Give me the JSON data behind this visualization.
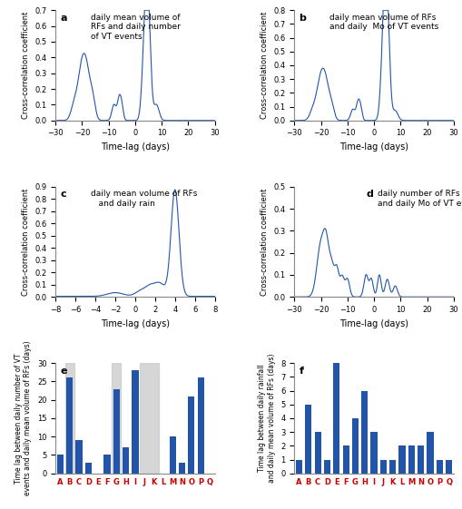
{
  "panel_a": {
    "title": "daily mean volume of\nRFs and daily number\nof VT events",
    "label": "a",
    "xlim": [
      -30,
      30
    ],
    "ylim": [
      0,
      0.7
    ],
    "yticks": [
      0.0,
      0.1,
      0.2,
      0.3,
      0.4,
      0.5,
      0.6,
      0.7
    ],
    "xticks": [
      -30,
      -20,
      -10,
      0,
      10,
      20,
      30
    ]
  },
  "panel_b": {
    "title": "daily mean volume of RFs\nand daily  Mo of VT events",
    "label": "b",
    "xlim": [
      -30,
      30
    ],
    "ylim": [
      0,
      0.8
    ],
    "yticks": [
      0.0,
      0.1,
      0.2,
      0.3,
      0.4,
      0.5,
      0.6,
      0.7,
      0.8
    ],
    "xticks": [
      -30,
      -20,
      -10,
      0,
      10,
      20,
      30
    ]
  },
  "panel_c": {
    "title": "daily mean volume of RFs\n   and daily rain",
    "label": "c",
    "xlim": [
      -8,
      8
    ],
    "ylim": [
      0,
      0.9
    ],
    "yticks": [
      0.0,
      0.1,
      0.2,
      0.3,
      0.4,
      0.5,
      0.6,
      0.7,
      0.8,
      0.9
    ],
    "xticks": [
      -8,
      -6,
      -4,
      -2,
      0,
      2,
      4,
      6,
      8
    ]
  },
  "panel_d": {
    "title": "daily number of RFs\nand daily Mo of VT events",
    "label": "d",
    "xlim": [
      -30,
      30
    ],
    "ylim": [
      0,
      0.5
    ],
    "yticks": [
      0.0,
      0.1,
      0.2,
      0.3,
      0.4,
      0.5
    ],
    "xticks": [
      -30,
      -20,
      -10,
      0,
      10,
      20,
      30
    ]
  },
  "panel_e": {
    "label": "e",
    "categories": [
      "A",
      "B",
      "C",
      "D",
      "E",
      "F",
      "G",
      "H",
      "I",
      "J",
      "K",
      "L",
      "M",
      "N",
      "O",
      "P",
      "Q"
    ],
    "values": [
      5,
      26,
      9,
      3,
      0,
      5,
      23,
      7,
      28,
      0,
      0,
      0,
      10,
      3,
      21,
      26,
      0
    ],
    "gray_band_ranges": [
      [
        0.5,
        1.5
      ],
      [
        5.5,
        6.5
      ],
      [
        8.5,
        10.5
      ]
    ],
    "ylim": [
      0,
      30
    ],
    "yticks": [
      0,
      5,
      10,
      15,
      20,
      25,
      30
    ],
    "ylabel": "Time lag between daily number of VT\nevents and daily mean volume of RFs (days)"
  },
  "panel_f": {
    "label": "f",
    "categories": [
      "A",
      "B",
      "C",
      "D",
      "E",
      "F",
      "G",
      "H",
      "I",
      "J",
      "K",
      "L",
      "M",
      "N",
      "O",
      "P",
      "Q"
    ],
    "values": [
      1,
      5,
      3,
      1,
      8,
      2,
      4,
      6,
      3,
      1,
      1,
      2,
      2,
      2,
      3,
      1,
      1
    ],
    "ylim": [
      0,
      8
    ],
    "yticks": [
      0,
      1,
      2,
      3,
      4,
      5,
      6,
      7,
      8
    ],
    "ylabel": "Time lag between daily rainfall\nand daily mean volume of RFs (days)"
  },
  "line_color": "#2255aa",
  "bar_color": "#2255aa",
  "xlabel_corr": "Time-lag (days)",
  "ylabel_corr": "Cross-correlation coefficient",
  "tick_label_color": "#cc0000",
  "background_color": "#ffffff"
}
